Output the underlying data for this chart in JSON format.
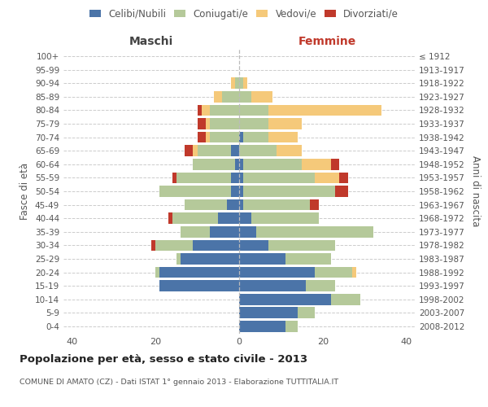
{
  "age_groups": [
    "0-4",
    "5-9",
    "10-14",
    "15-19",
    "20-24",
    "25-29",
    "30-34",
    "35-39",
    "40-44",
    "45-49",
    "50-54",
    "55-59",
    "60-64",
    "65-69",
    "70-74",
    "75-79",
    "80-84",
    "85-89",
    "90-94",
    "95-99",
    "100+"
  ],
  "birth_years": [
    "2008-2012",
    "2003-2007",
    "1998-2002",
    "1993-1997",
    "1988-1992",
    "1983-1987",
    "1978-1982",
    "1973-1977",
    "1968-1972",
    "1963-1967",
    "1958-1962",
    "1953-1957",
    "1948-1952",
    "1943-1947",
    "1938-1942",
    "1933-1937",
    "1928-1932",
    "1923-1927",
    "1918-1922",
    "1913-1917",
    "≤ 1912"
  ],
  "male_celibi": [
    0,
    0,
    0,
    19,
    19,
    14,
    11,
    7,
    5,
    3,
    2,
    2,
    1,
    2,
    0,
    0,
    0,
    0,
    0,
    0,
    0
  ],
  "male_coniugati": [
    0,
    0,
    0,
    0,
    1,
    1,
    9,
    7,
    11,
    10,
    17,
    13,
    10,
    8,
    7,
    7,
    7,
    4,
    1,
    0,
    0
  ],
  "male_vedovi": [
    0,
    0,
    0,
    0,
    0,
    0,
    0,
    0,
    0,
    0,
    0,
    0,
    0,
    1,
    1,
    1,
    2,
    2,
    1,
    0,
    0
  ],
  "male_divorziati": [
    0,
    0,
    0,
    0,
    0,
    0,
    1,
    0,
    1,
    0,
    0,
    1,
    0,
    2,
    2,
    2,
    1,
    0,
    0,
    0,
    0
  ],
  "female_nubili": [
    11,
    14,
    22,
    16,
    18,
    11,
    7,
    4,
    3,
    1,
    1,
    1,
    1,
    0,
    1,
    0,
    0,
    0,
    0,
    0,
    0
  ],
  "female_coniugate": [
    3,
    4,
    7,
    7,
    9,
    11,
    16,
    28,
    16,
    16,
    22,
    17,
    14,
    9,
    6,
    7,
    7,
    3,
    1,
    0,
    0
  ],
  "female_vedove": [
    0,
    0,
    0,
    0,
    1,
    0,
    0,
    0,
    0,
    0,
    0,
    6,
    7,
    6,
    7,
    8,
    27,
    5,
    1,
    0,
    0
  ],
  "female_divorziate": [
    0,
    0,
    0,
    0,
    0,
    0,
    0,
    0,
    0,
    2,
    3,
    2,
    2,
    0,
    0,
    0,
    0,
    0,
    0,
    0,
    0
  ],
  "color_celibi": "#4b74a8",
  "color_coniugati": "#b5c99a",
  "color_vedovi": "#f5c97a",
  "color_divorziati": "#c0392b",
  "title": "Popolazione per età, sesso e stato civile - 2013",
  "subtitle": "COMUNE DI AMATO (CZ) - Dati ISTAT 1° gennaio 2013 - Elaborazione TUTTITALIA.IT",
  "label_maschi": "Maschi",
  "label_femmine": "Femmine",
  "ylabel_left": "Fasce di età",
  "ylabel_right": "Anni di nascita",
  "legend_labels": [
    "Celibi/Nubili",
    "Coniugati/e",
    "Vedovi/e",
    "Divorziati/e"
  ],
  "xlim": 42,
  "bar_height": 0.82,
  "bg_color": "#ffffff",
  "grid_color": "#cccccc",
  "text_color": "#555555",
  "title_color": "#222222"
}
